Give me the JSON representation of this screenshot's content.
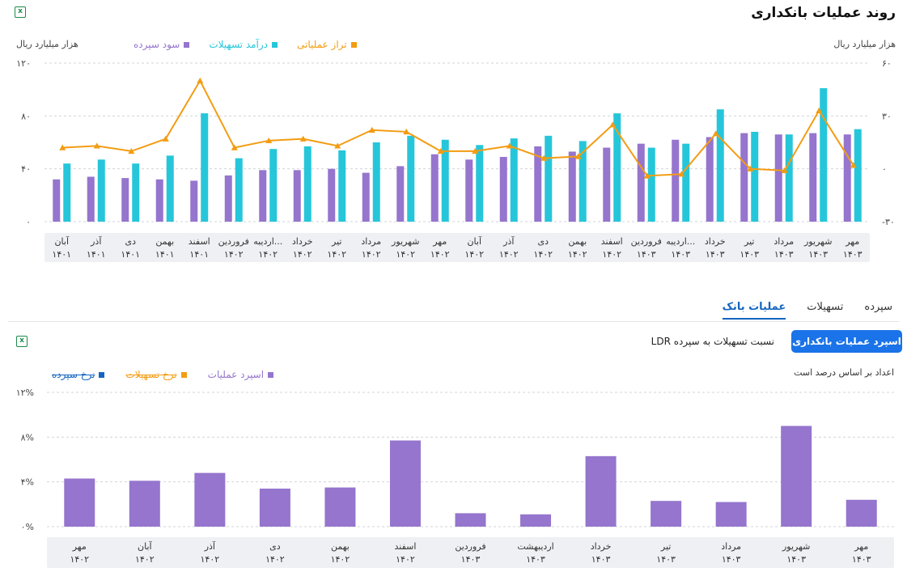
{
  "page": {
    "title": "روند عملیات بانکداری"
  },
  "top_chart": {
    "unit_left": "هزار میلیارد ریال",
    "unit_right": "هزار میلیارد ریال",
    "legend": [
      {
        "label": "تراز عملیاتی",
        "color": "#f39c12"
      },
      {
        "label": "درآمد تسهیلات",
        "color": "#26c6da"
      },
      {
        "label": "سود سپرده",
        "color": "#9575cd"
      }
    ]
  },
  "tabs": [
    {
      "label": "سپرده",
      "active": false
    },
    {
      "label": "تسهیلات",
      "active": false
    },
    {
      "label": "عملیات بانک",
      "active": true
    }
  ],
  "controls": {
    "primary_button": "اسپرد عملیات بانکداری",
    "secondary_button": "نسبت تسهیلات به سپرده LDR"
  },
  "bottom_chart": {
    "note": "اعداد بر اساس درصد است",
    "legend": [
      {
        "label": "اسپرد عملیات",
        "color": "#9575cd",
        "struck": false
      },
      {
        "label": "نرخ تسهیلات",
        "color": "#f39c12",
        "struck": true
      },
      {
        "label": "نرخ سپرده",
        "color": "#1565c0",
        "struck": true
      }
    ]
  },
  "chart_data": [
    {
      "type": "bar",
      "title": "روند عملیات بانکداری",
      "ylabel": "هزار میلیارد ریال",
      "ylabel_right": "هزار میلیارد ریال",
      "ylim": [
        0,
        120
      ],
      "yticks": [
        "۰",
        "۴۰",
        "۸۰",
        "۱۲۰"
      ],
      "ylim_right": [
        -30,
        60
      ],
      "yticks_right": [
        "-۳۰",
        "۰",
        "۳۰",
        "۶۰"
      ],
      "categories": [
        {
          "month": "آبان",
          "year": "۱۴۰۱"
        },
        {
          "month": "آذر",
          "year": "۱۴۰۱"
        },
        {
          "month": "دی",
          "year": "۱۴۰۱"
        },
        {
          "month": "بهمن",
          "year": "۱۴۰۱"
        },
        {
          "month": "اسفند",
          "year": "۱۴۰۱"
        },
        {
          "month": "فروردین",
          "year": "۱۴۰۲"
        },
        {
          "month": "اردیبه...",
          "year": "۱۴۰۲"
        },
        {
          "month": "خرداد",
          "year": "۱۴۰۲"
        },
        {
          "month": "تیر",
          "year": "۱۴۰۲"
        },
        {
          "month": "مرداد",
          "year": "۱۴۰۲"
        },
        {
          "month": "شهریور",
          "year": "۱۴۰۲"
        },
        {
          "month": "مهر",
          "year": "۱۴۰۲"
        },
        {
          "month": "آبان",
          "year": "۱۴۰۲"
        },
        {
          "month": "آذر",
          "year": "۱۴۰۲"
        },
        {
          "month": "دی",
          "year": "۱۴۰۲"
        },
        {
          "month": "بهمن",
          "year": "۱۴۰۲"
        },
        {
          "month": "اسفند",
          "year": "۱۴۰۲"
        },
        {
          "month": "فروردین",
          "year": "۱۴۰۳"
        },
        {
          "month": "اردیبه...",
          "year": "۱۴۰۳"
        },
        {
          "month": "خرداد",
          "year": "۱۴۰۳"
        },
        {
          "month": "تیر",
          "year": "۱۴۰۳"
        },
        {
          "month": "مرداد",
          "year": "۱۴۰۳"
        },
        {
          "month": "شهریور",
          "year": "۱۴۰۳"
        },
        {
          "month": "مهر",
          "year": "۱۴۰۳"
        }
      ],
      "series": [
        {
          "name": "سود سپرده",
          "type": "bar",
          "axis": "left",
          "color": "#9575cd",
          "values": [
            32,
            34,
            33,
            32,
            31,
            35,
            39,
            39,
            40,
            37,
            42,
            51,
            47,
            49,
            57,
            53,
            56,
            59,
            62,
            64,
            67,
            66,
            67,
            66
          ]
        },
        {
          "name": "درآمد تسهیلات",
          "type": "bar",
          "axis": "left",
          "color": "#26c6da",
          "values": [
            44,
            47,
            44,
            50,
            82,
            48,
            55,
            57,
            54,
            60,
            65,
            62,
            58,
            63,
            65,
            61,
            82,
            56,
            59,
            85,
            68,
            66,
            101,
            70
          ]
        },
        {
          "name": "تراز عملیاتی",
          "type": "line",
          "axis": "right",
          "color": "#f39c12",
          "values": [
            12,
            13,
            10,
            17,
            50,
            12,
            16,
            17,
            13,
            22,
            21,
            10,
            10,
            13,
            6,
            7,
            25,
            -4,
            -3,
            20,
            0,
            -1,
            33,
            2
          ]
        }
      ]
    },
    {
      "type": "bar",
      "ylabel": "اعداد بر اساس درصد است",
      "ylim": [
        0,
        12
      ],
      "yticks": [
        "۰%",
        "۴%",
        "۸%",
        "۱۲%"
      ],
      "categories": [
        {
          "month": "مهر",
          "year": "۱۴۰۲"
        },
        {
          "month": "آبان",
          "year": "۱۴۰۲"
        },
        {
          "month": "آذر",
          "year": "۱۴۰۲"
        },
        {
          "month": "دی",
          "year": "۱۴۰۲"
        },
        {
          "month": "بهمن",
          "year": "۱۴۰۲"
        },
        {
          "month": "اسفند",
          "year": "۱۴۰۲"
        },
        {
          "month": "فروردین",
          "year": "۱۴۰۳"
        },
        {
          "month": "اردیبهشت",
          "year": "۱۴۰۳"
        },
        {
          "month": "خرداد",
          "year": "۱۴۰۳"
        },
        {
          "month": "تیر",
          "year": "۱۴۰۳"
        },
        {
          "month": "مرداد",
          "year": "۱۴۰۳"
        },
        {
          "month": "شهریور",
          "year": "۱۴۰۳"
        },
        {
          "month": "مهر",
          "year": "۱۴۰۳"
        }
      ],
      "series": [
        {
          "name": "اسپرد عملیات",
          "type": "bar",
          "color": "#9575cd",
          "values": [
            4.3,
            4.1,
            4.8,
            3.4,
            3.5,
            7.7,
            1.2,
            1.1,
            6.3,
            2.3,
            2.2,
            9.0,
            2.4
          ]
        }
      ]
    }
  ]
}
